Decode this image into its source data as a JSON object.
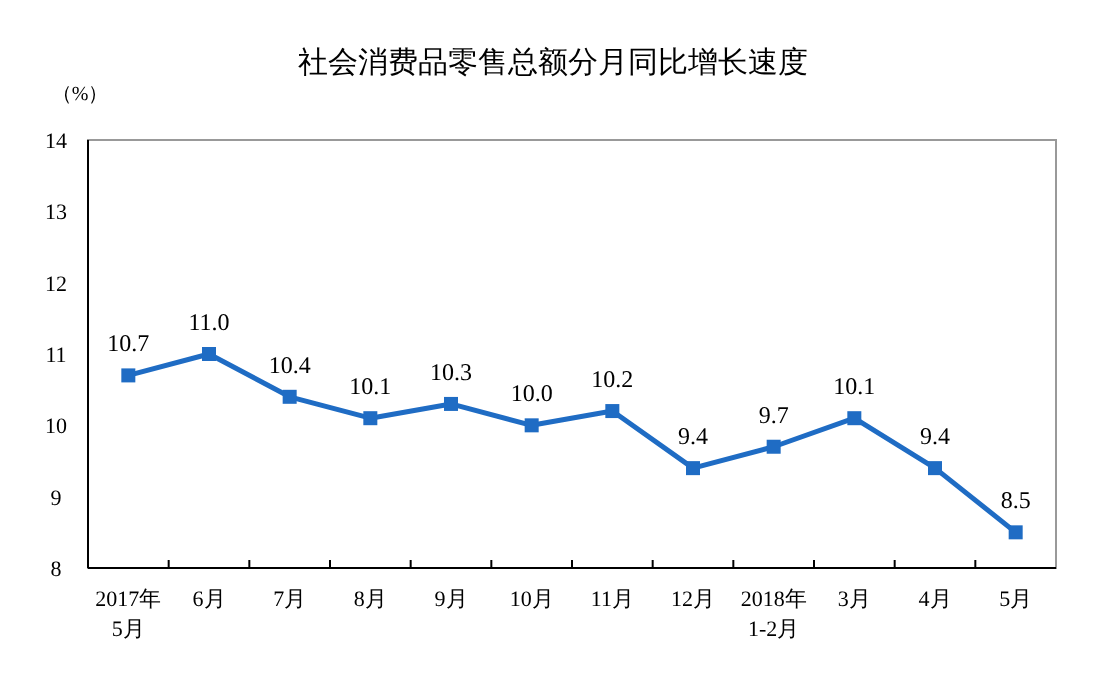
{
  "chart_data": {
    "type": "line",
    "title": "社会消费品零售总额分月同比增长速度",
    "ylabel": "（%）",
    "categories": [
      "2017年\n5月",
      "6月",
      "7月",
      "8月",
      "9月",
      "10月",
      "11月",
      "12月",
      "2018年\n1-2月",
      "3月",
      "4月",
      "5月"
    ],
    "series": [
      {
        "color": "#1f6cc4",
        "values": [
          10.7,
          11.0,
          10.4,
          10.1,
          10.3,
          10.0,
          10.2,
          9.4,
          9.7,
          10.1,
          9.4,
          8.5
        ],
        "value_labels": [
          "10.7",
          "11.0",
          "10.4",
          "10.1",
          "10.3",
          "10.0",
          "10.2",
          "9.4",
          "9.7",
          "10.1",
          "9.4",
          "8.5"
        ]
      }
    ],
    "ylim": [
      8,
      14
    ],
    "yticks": [
      8,
      9,
      10,
      11,
      12,
      13,
      14
    ],
    "grid": false,
    "marker": "square",
    "line_style": "solid"
  }
}
